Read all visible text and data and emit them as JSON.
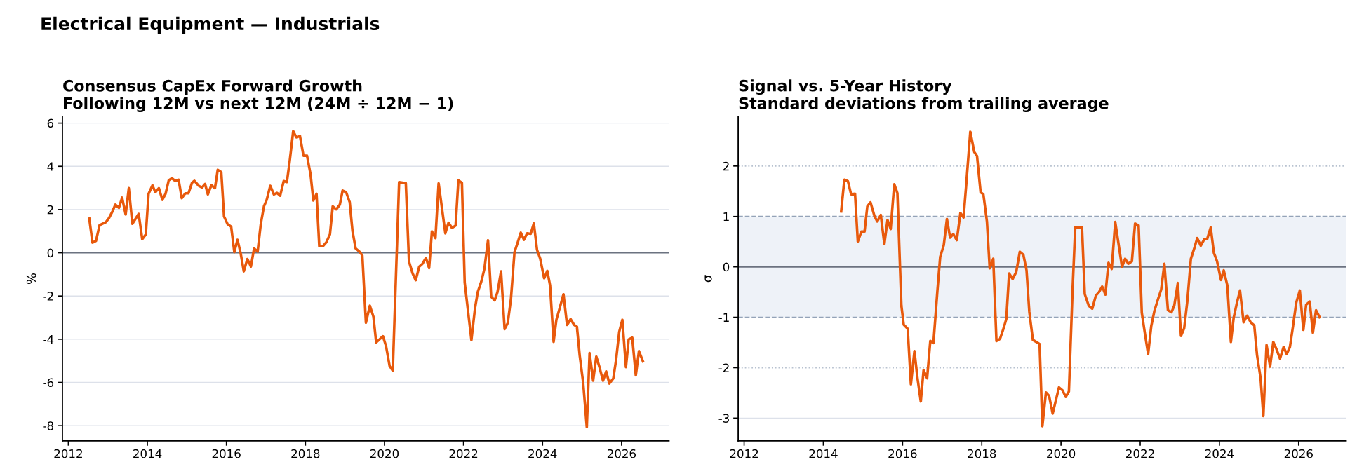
{
  "chart_data": [
    {
      "type": "line",
      "title": "Consensus CapEx Forward Growth",
      "subtitle": "Following 12M vs next 12M (24M ÷ 12M − 1)",
      "ylabel": "%",
      "annotations": [
        "Electrical Equipment — Industrials"
      ],
      "grid": "y",
      "xlim": [
        2011.85,
        2027.2
      ],
      "xticks": [
        2012,
        2014,
        2016,
        2018,
        2020,
        2022,
        2024,
        2026
      ],
      "ylim": [
        -8.7,
        6.3
      ],
      "yticks": [
        -8,
        -6,
        -4,
        -2,
        0,
        2,
        4,
        6
      ],
      "ref_lines": [
        {
          "axis": "y",
          "value": 0,
          "color": "#6b7280",
          "line_style": "solid"
        }
      ],
      "series": [
        {
          "color": "#e8590c",
          "x": [
            2012.53,
            2012.61,
            2012.7,
            2012.79,
            2012.95,
            2013.03,
            2013.12,
            2013.19,
            2013.28,
            2013.36,
            2013.45,
            2013.53,
            2013.62,
            2013.78,
            2013.87,
            2013.96,
            2014.03,
            2014.13,
            2014.2,
            2014.29,
            2014.38,
            2014.46,
            2014.54,
            2014.62,
            2014.71,
            2014.79,
            2014.87,
            2014.96,
            2015.04,
            2015.13,
            2015.19,
            2015.3,
            2015.38,
            2015.46,
            2015.53,
            2015.62,
            2015.71,
            2015.78,
            2015.87,
            2015.94,
            2016.03,
            2016.12,
            2016.2,
            2016.28,
            2016.36,
            2016.44,
            2016.53,
            2016.62,
            2016.7,
            2016.79,
            2016.87,
            2016.95,
            2017.02,
            2017.11,
            2017.2,
            2017.28,
            2017.36,
            2017.45,
            2017.53,
            2017.6,
            2017.69,
            2017.77,
            2017.86,
            2017.95,
            2018.04,
            2018.13,
            2018.2,
            2018.28,
            2018.35,
            2018.44,
            2018.53,
            2018.62,
            2018.69,
            2018.78,
            2018.87,
            2018.94,
            2019.03,
            2019.12,
            2019.19,
            2019.27,
            2019.37,
            2019.44,
            2019.53,
            2019.63,
            2019.72,
            2019.79,
            2019.96,
            2020.04,
            2020.13,
            2020.21,
            2020.37,
            2020.54,
            2020.62,
            2020.71,
            2020.79,
            2020.88,
            2020.96,
            2021.05,
            2021.13,
            2021.2,
            2021.29,
            2021.37,
            2021.54,
            2021.62,
            2021.71,
            2021.8,
            2021.87,
            2021.96,
            2022.03,
            2022.12,
            2022.2,
            2022.29,
            2022.36,
            2022.45,
            2022.53,
            2022.62,
            2022.7,
            2022.79,
            2022.86,
            2022.95,
            2023.04,
            2023.12,
            2023.2,
            2023.29,
            2023.37,
            2023.45,
            2023.53,
            2023.61,
            2023.7,
            2023.78,
            2023.86,
            2023.94,
            2024.04,
            2024.12,
            2024.19,
            2024.28,
            2024.35,
            2024.44,
            2024.53,
            2024.62,
            2024.71,
            2024.8,
            2024.87,
            2024.94,
            2025.03,
            2025.12,
            2025.19,
            2025.28,
            2025.36,
            2025.44,
            2025.53,
            2025.61,
            2025.69,
            2025.79,
            2025.86,
            2025.94,
            2026.02,
            2026.11,
            2026.18,
            2026.27,
            2026.36,
            2026.44,
            2026.54
          ],
          "values": [
            1.58,
            0.47,
            0.55,
            1.28,
            1.42,
            1.61,
            1.93,
            2.23,
            2.08,
            2.55,
            1.77,
            2.99,
            1.34,
            1.8,
            0.63,
            0.85,
            2.73,
            3.12,
            2.8,
            2.99,
            2.45,
            2.73,
            3.35,
            3.45,
            3.32,
            3.38,
            2.53,
            2.75,
            2.75,
            3.24,
            3.33,
            3.1,
            3.02,
            3.18,
            2.7,
            3.13,
            2.99,
            3.84,
            3.73,
            1.68,
            1.32,
            1.21,
            0.03,
            0.6,
            -0.02,
            -0.86,
            -0.29,
            -0.64,
            0.2,
            0.05,
            1.34,
            2.15,
            2.45,
            3.1,
            2.7,
            2.77,
            2.64,
            3.32,
            3.27,
            4.22,
            5.63,
            5.34,
            5.41,
            4.49,
            4.49,
            3.62,
            2.42,
            2.73,
            0.3,
            0.3,
            0.49,
            0.85,
            2.15,
            2.01,
            2.23,
            2.88,
            2.8,
            2.34,
            1.01,
            0.2,
            0.05,
            -0.13,
            -3.24,
            -2.45,
            -2.96,
            -4.15,
            -3.86,
            -4.32,
            -5.24,
            -5.46,
            3.27,
            3.22,
            -0.4,
            -0.95,
            -1.27,
            -0.64,
            -0.51,
            -0.24,
            -0.71,
            0.99,
            0.68,
            3.21,
            0.9,
            1.39,
            1.15,
            1.26,
            3.35,
            3.24,
            -1.38,
            -2.79,
            -4.04,
            -2.58,
            -1.82,
            -1.33,
            -0.73,
            0.58,
            -2.03,
            -2.2,
            -1.82,
            -0.86,
            -3.53,
            -3.25,
            -2.14,
            0.03,
            0.47,
            0.93,
            0.6,
            0.9,
            0.88,
            1.36,
            0.14,
            -0.27,
            -1.18,
            -0.84,
            -1.51,
            -4.12,
            -3.1,
            -2.52,
            -1.92,
            -3.34,
            -3.07,
            -3.34,
            -3.42,
            -4.75,
            -6.05,
            -8.07,
            -4.64,
            -5.92,
            -4.8,
            -5.29,
            -5.92,
            -5.49,
            -6.05,
            -5.82,
            -4.97,
            -3.66,
            -3.1,
            -5.29,
            -4.01,
            -3.93,
            -5.67,
            -4.55,
            -5.02
          ]
        }
      ]
    },
    {
      "type": "line",
      "title": "Signal vs. 5-Year History",
      "subtitle": "Standard deviations from trailing average",
      "ylabel": "σ",
      "xlim": [
        2011.85,
        2027.2
      ],
      "xticks": [
        2012,
        2014,
        2016,
        2018,
        2020,
        2022,
        2024,
        2026
      ],
      "ylim": [
        -3.45,
        2.98
      ],
      "yticks": [
        -3,
        -2,
        -1,
        0,
        1,
        2
      ],
      "bands": [
        {
          "axis": "y",
          "from": -1,
          "to": 1,
          "color": "#eef2f8"
        }
      ],
      "ref_lines": [
        {
          "axis": "y",
          "value": 0,
          "color": "#6b7280",
          "line_style": "solid"
        },
        {
          "axis": "y",
          "value": 1,
          "color": "#94a3b8",
          "line_style": "dashed"
        },
        {
          "axis": "y",
          "value": -1,
          "color": "#94a3b8",
          "line_style": "dashed"
        },
        {
          "axis": "y",
          "value": 2,
          "color": "#b8c2d0",
          "line_style": "dotted"
        },
        {
          "axis": "y",
          "value": -2,
          "color": "#b8c2d0",
          "line_style": "dotted"
        },
        {
          "axis": "y",
          "value": -3,
          "color": "#dde1ea",
          "line_style": "solid"
        }
      ],
      "series": [
        {
          "color": "#e8590c",
          "x": [
            2014.45,
            2014.53,
            2014.62,
            2014.7,
            2014.8,
            2014.87,
            2014.96,
            2015.04,
            2015.11,
            2015.19,
            2015.29,
            2015.36,
            2015.45,
            2015.54,
            2015.62,
            2015.7,
            2015.79,
            2015.87,
            2015.97,
            2016.03,
            2016.13,
            2016.21,
            2016.3,
            2016.37,
            2016.46,
            2016.53,
            2016.62,
            2016.7,
            2016.78,
            2016.88,
            2016.95,
            2017.04,
            2017.12,
            2017.2,
            2017.28,
            2017.37,
            2017.46,
            2017.54,
            2017.61,
            2017.71,
            2017.81,
            2017.88,
            2017.97,
            2018.04,
            2018.13,
            2018.2,
            2018.29,
            2018.37,
            2018.46,
            2018.55,
            2018.62,
            2018.69,
            2018.78,
            2018.87,
            2018.96,
            2019.05,
            2019.13,
            2019.2,
            2019.29,
            2019.38,
            2019.46,
            2019.53,
            2019.62,
            2019.7,
            2019.79,
            2019.95,
            2020.04,
            2020.12,
            2020.2,
            2020.29,
            2020.36,
            2020.53,
            2020.6,
            2020.7,
            2020.79,
            2020.88,
            2020.96,
            2021.04,
            2021.12,
            2021.2,
            2021.28,
            2021.37,
            2021.54,
            2021.62,
            2021.7,
            2021.79,
            2021.87,
            2021.96,
            2022.04,
            2022.12,
            2022.2,
            2022.28,
            2022.36,
            2022.45,
            2022.53,
            2022.61,
            2022.7,
            2022.79,
            2022.86,
            2022.95,
            2023.03,
            2023.11,
            2023.19,
            2023.28,
            2023.37,
            2023.44,
            2023.53,
            2023.62,
            2023.69,
            2023.78,
            2023.86,
            2023.94,
            2024.04,
            2024.11,
            2024.2,
            2024.29,
            2024.36,
            2024.44,
            2024.52,
            2024.61,
            2024.7,
            2024.79,
            2024.88,
            2024.95,
            2025.04,
            2025.11,
            2025.19,
            2025.28,
            2025.36,
            2025.44,
            2025.53,
            2025.62,
            2025.7,
            2025.78,
            2025.86,
            2025.94,
            2026.03,
            2026.12,
            2026.19,
            2026.28,
            2026.36,
            2026.44,
            2026.53
          ],
          "values": [
            1.1,
            1.73,
            1.7,
            1.44,
            1.45,
            0.5,
            0.7,
            0.7,
            1.2,
            1.28,
            1.01,
            0.9,
            1.03,
            0.45,
            0.93,
            0.75,
            1.64,
            1.46,
            -0.77,
            -1.15,
            -1.23,
            -2.33,
            -1.67,
            -2.17,
            -2.67,
            -2.05,
            -2.21,
            -1.47,
            -1.51,
            -0.47,
            0.2,
            0.43,
            0.95,
            0.58,
            0.65,
            0.53,
            1.07,
            0.98,
            1.66,
            2.68,
            2.28,
            2.2,
            1.48,
            1.44,
            0.9,
            -0.03,
            0.16,
            -1.47,
            -1.43,
            -1.22,
            -1.03,
            -0.13,
            -0.24,
            -0.1,
            0.3,
            0.24,
            -0.07,
            -0.89,
            -1.45,
            -1.49,
            -1.53,
            -3.16,
            -2.49,
            -2.56,
            -2.91,
            -2.39,
            -2.45,
            -2.58,
            -2.47,
            -0.5,
            0.79,
            0.78,
            -0.54,
            -0.77,
            -0.83,
            -0.57,
            -0.5,
            -0.39,
            -0.55,
            0.08,
            -0.04,
            0.89,
            0.0,
            0.16,
            0.06,
            0.11,
            0.86,
            0.82,
            -0.91,
            -1.33,
            -1.73,
            -1.17,
            -0.87,
            -0.64,
            -0.45,
            0.06,
            -0.86,
            -0.9,
            -0.77,
            -0.32,
            -1.37,
            -1.22,
            -0.68,
            0.16,
            0.38,
            0.57,
            0.42,
            0.55,
            0.55,
            0.78,
            0.28,
            0.11,
            -0.26,
            -0.07,
            -0.37,
            -1.49,
            -1.01,
            -0.72,
            -0.47,
            -1.1,
            -0.97,
            -1.1,
            -1.16,
            -1.75,
            -2.21,
            -2.96,
            -1.55,
            -1.98,
            -1.49,
            -1.63,
            -1.82,
            -1.59,
            -1.73,
            -1.59,
            -1.17,
            -0.71,
            -0.47,
            -1.25,
            -0.75,
            -0.69,
            -1.31,
            -0.86,
            -1.0
          ]
        }
      ]
    }
  ]
}
